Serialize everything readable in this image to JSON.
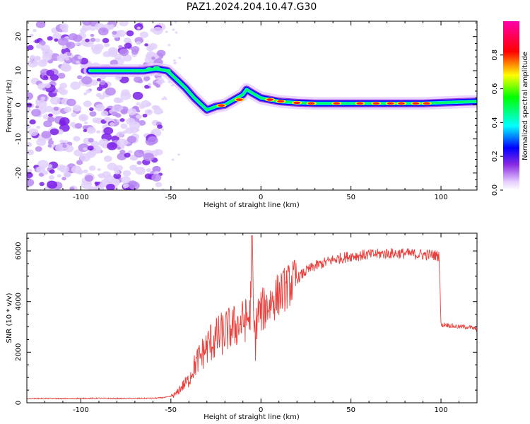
{
  "title": "PAZ1.2024.204.10.47.G30",
  "colors": {
    "snr_line": "#e8403c",
    "frame": "#000000"
  },
  "chart_data": [
    {
      "type": "heatmap",
      "title": "PAZ1.2024.204.10.47.G30",
      "xlabel": "Height of straight line (km)",
      "ylabel": "Frequency (Hz)",
      "xlim": [
        -130,
        120
      ],
      "ylim": [
        -25,
        24.5
      ],
      "xticks": [
        -100,
        -50,
        0,
        50,
        100
      ],
      "yticks": [
        -20,
        -10,
        0,
        10,
        20
      ],
      "colorbar": {
        "label": "Normalized spectral amplitude",
        "range": [
          0,
          1
        ],
        "ticks": [
          0.0,
          0.2,
          0.4,
          0.6,
          0.8
        ],
        "colormap": [
          "#e6ccff",
          "#8a2be2",
          "#0000ff",
          "#00ffff",
          "#00ff00",
          "#ffff00",
          "#ff0000",
          "#ff00aa"
        ]
      },
      "ridge": {
        "x": [
          -95,
          -80,
          -65,
          -58,
          -52,
          -47,
          -42,
          -37,
          -33,
          -30,
          -25,
          -20,
          -15,
          -10,
          -8,
          -5,
          0,
          5,
          10,
          20,
          30,
          50,
          70,
          90,
          110,
          120
        ],
        "y": [
          10,
          10,
          10,
          10.5,
          10,
          7.5,
          5,
          2,
          0,
          -1.5,
          -0.5,
          0,
          1.5,
          3,
          4.5,
          3.5,
          2,
          1.5,
          1,
          0.6,
          0.4,
          0.4,
          0.4,
          0.4,
          0.8,
          1
        ]
      },
      "noise_region_x": [
        -130,
        -55
      ]
    },
    {
      "type": "line",
      "xlabel": "Height of straight line (km)",
      "ylabel": "SNR (10 * v/v)",
      "xlim": [
        -130,
        120
      ],
      "ylim": [
        0,
        6700
      ],
      "xticks": [
        -100,
        -50,
        0,
        50,
        100
      ],
      "yticks": [
        0,
        2000,
        4000,
        6000
      ],
      "series": [
        {
          "x": [
            -130,
            -120,
            -110,
            -100,
            -90,
            -80,
            -70,
            -60,
            -55,
            -50,
            -47,
            -45,
            -43,
            -40,
            -38,
            -35,
            -32,
            -30,
            -28,
            -25,
            -22,
            -20,
            -18,
            -15,
            -12,
            -10,
            -8,
            -6,
            -5,
            -4,
            -3,
            -2,
            0,
            3,
            6,
            10,
            15,
            20,
            25,
            30,
            40,
            50,
            60,
            70,
            80,
            90,
            95,
            99,
            100,
            100.5,
            102,
            105,
            110,
            115,
            120
          ],
          "y": [
            170,
            175,
            165,
            175,
            180,
            170,
            175,
            180,
            200,
            250,
            350,
            550,
            700,
            900,
            1300,
            1700,
            2000,
            2200,
            2400,
            2500,
            2700,
            2800,
            2900,
            3000,
            3100,
            3200,
            3300,
            3400,
            6600,
            3000,
            2500,
            3500,
            3600,
            3800,
            4000,
            4300,
            4600,
            4900,
            5200,
            5400,
            5650,
            5800,
            5850,
            5900,
            5900,
            5850,
            5850,
            5800,
            3100,
            3050,
            3100,
            3050,
            3000,
            3000,
            2900
          ]
        }
      ]
    }
  ]
}
